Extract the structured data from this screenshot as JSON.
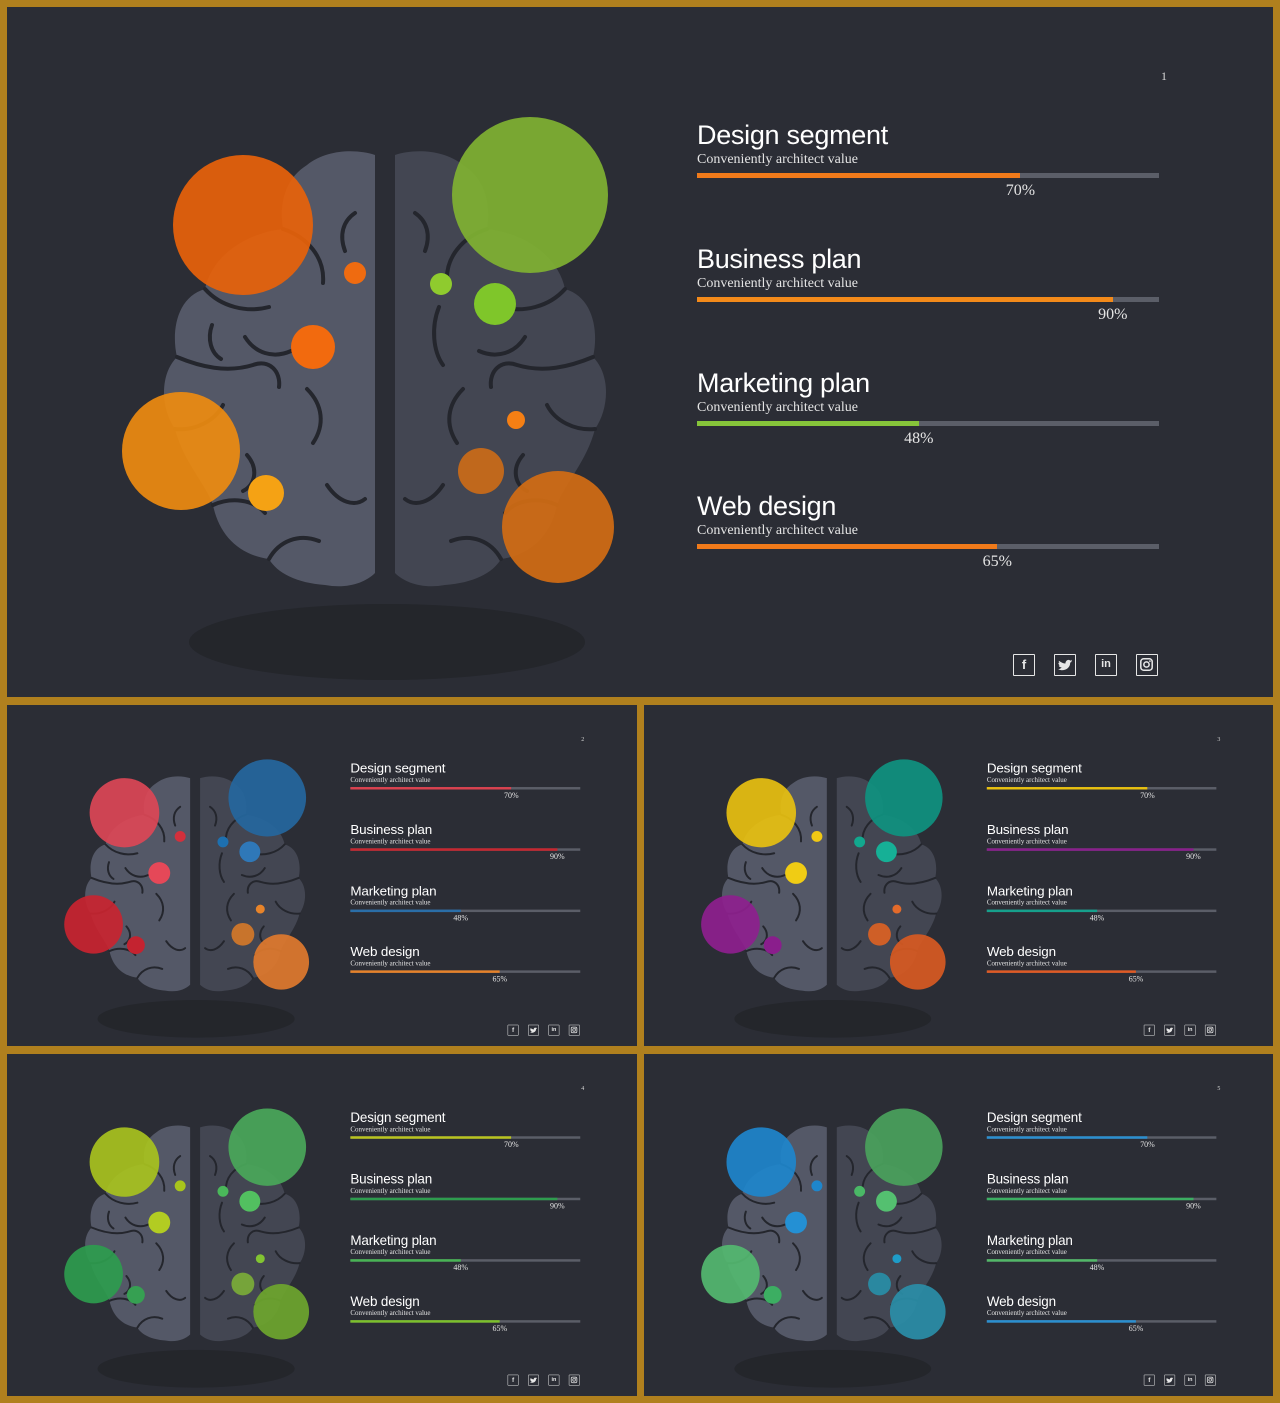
{
  "colors": {
    "background": "#2b2d35",
    "frame": "#b0801e",
    "brain_left": "#545867",
    "brain_right": "#434652",
    "brain_folds": "#24262d",
    "track": "#5b5e68"
  },
  "slides": [
    {
      "page_number": "1",
      "items": [
        {
          "title": "Design segment",
          "subtitle": "Conveniently architect value",
          "percent_label": "70%",
          "value": 70,
          "color": "#f07a1a"
        },
        {
          "title": "Business plan",
          "subtitle": "Conveniently architect value",
          "percent_label": "90%",
          "value": 90,
          "color": "#f38a1a"
        },
        {
          "title": "Marketing plan",
          "subtitle": "Conveniently architect value",
          "percent_label": "48%",
          "value": 48,
          "color": "#86c43a"
        },
        {
          "title": "Web design",
          "subtitle": "Conveniently architect value",
          "percent_label": "65%",
          "value": 65,
          "color": "#f07a1a"
        }
      ],
      "bubbles": [
        "#e8620a",
        "#80b232",
        "#ee8b10",
        "#d26d14",
        "#f26a0e",
        "#ef6b10",
        "#f5a214",
        "#8fcb2e",
        "#7fc62a",
        "#f57f14",
        "#c0681c"
      ]
    },
    {
      "page_number": "2",
      "items": [
        {
          "title": "Design segment",
          "subtitle": "Conveniently architect value",
          "percent_label": "70%",
          "value": 70,
          "color": "#d9424f"
        },
        {
          "title": "Business plan",
          "subtitle": "Conveniently architect value",
          "percent_label": "90%",
          "value": 90,
          "color": "#c8262f"
        },
        {
          "title": "Marketing plan",
          "subtitle": "Conveniently architect value",
          "percent_label": "48%",
          "value": 48,
          "color": "#2a6ea8"
        },
        {
          "title": "Web design",
          "subtitle": "Conveniently architect value",
          "percent_label": "65%",
          "value": 65,
          "color": "#e6822a"
        }
      ],
      "bubbles": [
        "#dc4656",
        "#25679e",
        "#c92430",
        "#e07a2e",
        "#e54858",
        "#d3303c",
        "#c42330",
        "#1d70b0",
        "#2f78b8",
        "#e8842a",
        "#c8742c"
      ]
    },
    {
      "page_number": "3",
      "items": [
        {
          "title": "Design segment",
          "subtitle": "Conveniently architect value",
          "percent_label": "70%",
          "value": 70,
          "color": "#e8c010"
        },
        {
          "title": "Business plan",
          "subtitle": "Conveniently architect value",
          "percent_label": "90%",
          "value": 90,
          "color": "#8a1e8c"
        },
        {
          "title": "Marketing plan",
          "subtitle": "Conveniently architect value",
          "percent_label": "48%",
          "value": 48,
          "color": "#16a08c"
        },
        {
          "title": "Web design",
          "subtitle": "Conveniently architect value",
          "percent_label": "65%",
          "value": 65,
          "color": "#e05a24"
        }
      ],
      "bubbles": [
        "#e8c010",
        "#0f9380",
        "#8e1f8e",
        "#d85a22",
        "#f0cc14",
        "#f0c814",
        "#8a1e8c",
        "#12a88e",
        "#16b096",
        "#e36a2a",
        "#cf5f27"
      ]
    },
    {
      "page_number": "4",
      "items": [
        {
          "title": "Design segment",
          "subtitle": "Conveniently architect value",
          "percent_label": "70%",
          "value": 70,
          "color": "#b9c41e"
        },
        {
          "title": "Business plan",
          "subtitle": "Conveniently architect value",
          "percent_label": "90%",
          "value": 90,
          "color": "#2e9c4e"
        },
        {
          "title": "Marketing plan",
          "subtitle": "Conveniently architect value",
          "percent_label": "48%",
          "value": 48,
          "color": "#48b454"
        },
        {
          "title": "Web design",
          "subtitle": "Conveniently architect value",
          "percent_label": "65%",
          "value": 65,
          "color": "#7cc02c"
        }
      ],
      "bubbles": [
        "#a8c21e",
        "#4aa85a",
        "#2e9c4e",
        "#6ea62e",
        "#b2cc22",
        "#a8c41c",
        "#36a052",
        "#4ab85a",
        "#52c060",
        "#82c432",
        "#76a43a"
      ]
    },
    {
      "page_number": "5",
      "items": [
        {
          "title": "Design segment",
          "subtitle": "Conveniently architect value",
          "percent_label": "70%",
          "value": 70,
          "color": "#2a8fd0"
        },
        {
          "title": "Business plan",
          "subtitle": "Conveniently architect value",
          "percent_label": "90%",
          "value": 90,
          "color": "#3cae62"
        },
        {
          "title": "Marketing plan",
          "subtitle": "Conveniently architect value",
          "percent_label": "48%",
          "value": 48,
          "color": "#52b868"
        },
        {
          "title": "Web design",
          "subtitle": "Conveniently architect value",
          "percent_label": "65%",
          "value": 65,
          "color": "#2a8fd0"
        }
      ],
      "bubbles": [
        "#1e86cc",
        "#4aa25c",
        "#54b870",
        "#2a8ea8",
        "#2490d4",
        "#1e86cc",
        "#3cae62",
        "#4ab866",
        "#54c070",
        "#1e9cc8",
        "#2a88a0"
      ]
    }
  ],
  "social": [
    {
      "icon": "facebook-icon",
      "label": "f"
    },
    {
      "icon": "twitter-icon"
    },
    {
      "icon": "linkedin-icon",
      "label": "in"
    },
    {
      "icon": "instagram-icon"
    }
  ]
}
